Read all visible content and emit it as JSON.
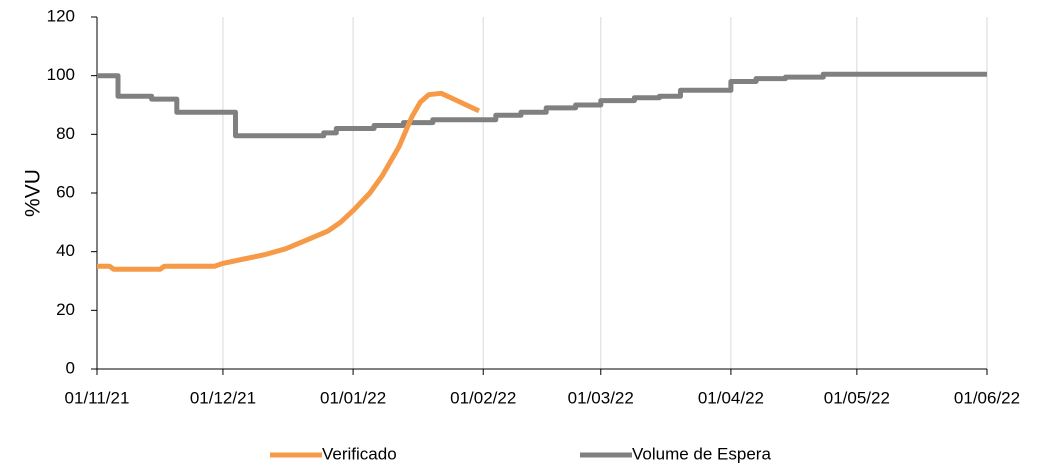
{
  "chart_data": {
    "type": "line",
    "y_label": "%VU",
    "xlim": [
      "01/11/21",
      "01/06/22"
    ],
    "xticks": [
      "01/11/21",
      "01/12/21",
      "01/01/22",
      "01/02/22",
      "01/03/22",
      "01/04/22",
      "01/05/22",
      "01/06/22"
    ],
    "ylim": [
      0,
      120
    ],
    "yticks": [
      0,
      20,
      40,
      60,
      80,
      100,
      120
    ],
    "grid": "x",
    "legend": "bottom",
    "series": [
      {
        "name": "Verificado",
        "color": "#f79a48",
        "x": [
          "01/11/21",
          "04/11/21",
          "05/11/21",
          "16/11/21",
          "17/11/21",
          "29/11/21",
          "01/12/21",
          "06/12/21",
          "11/12/21",
          "16/12/21",
          "21/12/21",
          "26/12/21",
          "29/12/21",
          "01/01/22",
          "05/01/22",
          "08/01/22",
          "12/01/22",
          "15/01/22",
          "17/01/22",
          "19/01/22",
          "22/01/22",
          "25/01/22",
          "28/01/22",
          "31/01/22"
        ],
        "values": [
          35,
          35,
          34,
          34,
          35,
          35,
          36,
          37.5,
          39,
          41,
          44,
          47,
          50,
          54,
          60,
          66,
          76,
          86,
          91,
          93.5,
          94,
          92,
          90,
          88
        ]
      },
      {
        "name": "Volume de Espera",
        "color": "#808080",
        "x": [
          "01/11/21",
          "06/11/21",
          "06/11/21",
          "14/11/21",
          "14/11/21",
          "20/11/21",
          "20/11/21",
          "04/12/21",
          "04/12/21",
          "25/12/21",
          "25/12/21",
          "28/12/21",
          "28/12/21",
          "06/01/22",
          "06/01/22",
          "13/01/22",
          "13/01/22",
          "20/01/22",
          "20/01/22",
          "04/02/22",
          "04/02/22",
          "10/02/22",
          "10/02/22",
          "16/02/22",
          "16/02/22",
          "23/02/22",
          "23/02/22",
          "01/03/22",
          "01/03/22",
          "09/03/22",
          "09/03/22",
          "15/03/22",
          "15/03/22",
          "20/03/22",
          "20/03/22",
          "01/04/22",
          "01/04/22",
          "07/04/22",
          "07/04/22",
          "14/04/22",
          "14/04/22",
          "23/04/22",
          "23/04/22",
          "01/06/22"
        ],
        "values": [
          100,
          100,
          93,
          93,
          92,
          92,
          87.5,
          87.5,
          79.5,
          79.5,
          80.5,
          80.5,
          82,
          82,
          83,
          83,
          84,
          84,
          85,
          85,
          86.5,
          86.5,
          87.5,
          87.5,
          89,
          89,
          90,
          90,
          91.5,
          91.5,
          92.5,
          92.5,
          93,
          93,
          95,
          95,
          98,
          98,
          99,
          99,
          99.5,
          99.5,
          100.5,
          100.5
        ]
      }
    ]
  }
}
